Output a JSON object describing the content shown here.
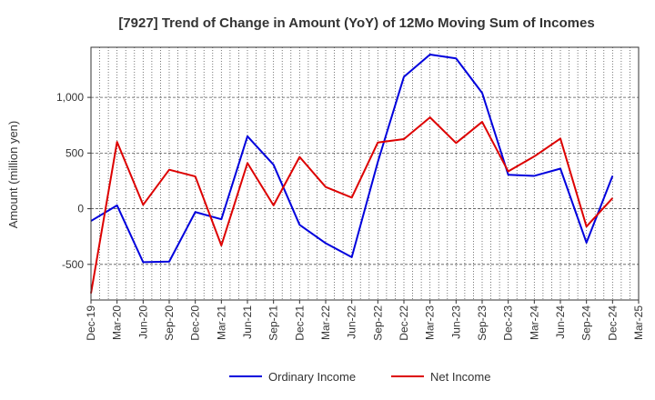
{
  "chart_data": {
    "type": "line",
    "title": "[7927]  Trend of Change in Amount (YoY) of 12Mo Moving Sum of Incomes",
    "ylabel": "Amount (million yen)",
    "xlabel": "",
    "categories": [
      "Dec-19",
      "Mar-20",
      "Jun-20",
      "Sep-20",
      "Dec-20",
      "Mar-21",
      "Jun-21",
      "Sep-21",
      "Dec-21",
      "Mar-22",
      "Jun-22",
      "Sep-22",
      "Dec-22",
      "Mar-23",
      "Jun-23",
      "Sep-23",
      "Dec-23",
      "Mar-24",
      "Jun-24",
      "Sep-24",
      "Dec-24",
      "Mar-25"
    ],
    "ylim": [
      -820,
      1450
    ],
    "yticks": [
      -500,
      0,
      500,
      1000
    ],
    "ytick_labels": [
      "-500",
      "0",
      "500",
      "1,000"
    ],
    "grid": true,
    "legend_position": "bottom",
    "series": [
      {
        "name": "Ordinary Income",
        "color": "#0000dd",
        "values": [
          -110,
          30,
          -480,
          -475,
          -30,
          -95,
          650,
          395,
          -145,
          -310,
          -435,
          420,
          1185,
          1385,
          1350,
          1040,
          305,
          295,
          360,
          -305,
          295,
          null
        ]
      },
      {
        "name": "Net Income",
        "color": "#dd0000",
        "values": [
          -760,
          600,
          35,
          350,
          290,
          -330,
          410,
          30,
          465,
          195,
          100,
          595,
          625,
          820,
          590,
          780,
          335,
          470,
          630,
          -160,
          95,
          null
        ]
      }
    ]
  }
}
